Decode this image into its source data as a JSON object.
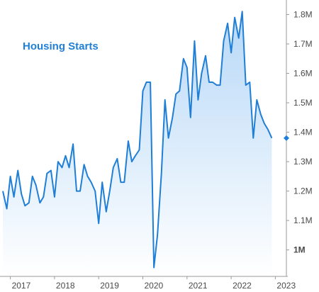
{
  "chart_data": {
    "type": "area",
    "title": "Housing Starts",
    "xlabel": "",
    "ylabel": "",
    "x_tick_labels": [
      "2017",
      "2018",
      "2019",
      "2020",
      "2021",
      "2022",
      "2023"
    ],
    "y_tick_labels": [
      "1.1M",
      "1.2M",
      "1.3M",
      "1.4M",
      "1.5M",
      "1.6M",
      "1.7M",
      "1.8M"
    ],
    "y_highlight_label": "1M",
    "xlim": [
      2016.83,
      2023.25
    ],
    "ylim": [
      0.91,
      1.83
    ],
    "grid": false,
    "legend": "none",
    "accent_color": "#1f7fd6",
    "marker_color": "#1f7fd6",
    "series": [
      {
        "x": [
          2016.83,
          2016.92,
          2017.0,
          2017.08,
          2017.17,
          2017.25,
          2017.33,
          2017.42,
          2017.5,
          2017.58,
          2017.67,
          2017.75,
          2017.83,
          2017.92,
          2018.0,
          2018.08,
          2018.17,
          2018.25,
          2018.33,
          2018.42,
          2018.5,
          2018.58,
          2018.67,
          2018.75,
          2018.83,
          2018.92,
          2019.0,
          2019.08,
          2019.17,
          2019.25,
          2019.33,
          2019.42,
          2019.5,
          2019.58,
          2019.67,
          2019.75,
          2019.83,
          2019.92,
          2020.0,
          2020.08,
          2020.17,
          2020.25,
          2020.33,
          2020.42,
          2020.5,
          2020.58,
          2020.67,
          2020.75,
          2020.83,
          2020.92,
          2021.0,
          2021.08,
          2021.17,
          2021.25,
          2021.33,
          2021.42,
          2021.5,
          2021.58,
          2021.67,
          2021.75,
          2021.83,
          2021.92,
          2022.0,
          2022.08,
          2022.17,
          2022.25,
          2022.33,
          2022.42,
          2022.5,
          2022.58,
          2022.67,
          2022.75,
          2022.83,
          2022.92
        ],
        "y": [
          1.2,
          1.14,
          1.25,
          1.18,
          1.27,
          1.19,
          1.15,
          1.16,
          1.25,
          1.22,
          1.16,
          1.18,
          1.26,
          1.27,
          1.18,
          1.3,
          1.28,
          1.32,
          1.28,
          1.36,
          1.2,
          1.2,
          1.29,
          1.25,
          1.23,
          1.2,
          1.09,
          1.23,
          1.13,
          1.2,
          1.28,
          1.31,
          1.23,
          1.23,
          1.37,
          1.3,
          1.32,
          1.34,
          1.54,
          1.57,
          1.57,
          0.94,
          1.05,
          1.26,
          1.51,
          1.38,
          1.45,
          1.53,
          1.54,
          1.65,
          1.62,
          1.45,
          1.71,
          1.51,
          1.6,
          1.66,
          1.57,
          1.57,
          1.56,
          1.56,
          1.71,
          1.77,
          1.67,
          1.79,
          1.72,
          1.81,
          1.56,
          1.57,
          1.38,
          1.51,
          1.46,
          1.43,
          1.41,
          1.38
        ]
      }
    ]
  }
}
